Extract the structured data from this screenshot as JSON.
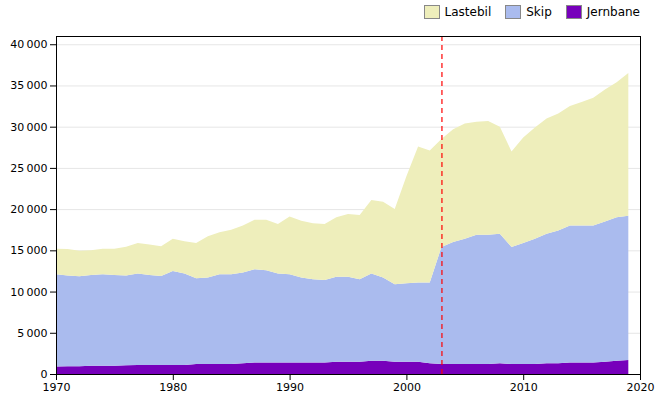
{
  "chart_data": {
    "type": "area",
    "stacked": true,
    "x": [
      1970,
      1971,
      1972,
      1973,
      1974,
      1975,
      1976,
      1977,
      1978,
      1979,
      1980,
      1981,
      1982,
      1983,
      1984,
      1985,
      1986,
      1987,
      1988,
      1989,
      1990,
      1991,
      1992,
      1993,
      1994,
      1995,
      1996,
      1997,
      1998,
      1999,
      2000,
      2001,
      2002,
      2003,
      2004,
      2005,
      2006,
      2007,
      2008,
      2009,
      2010,
      2011,
      2012,
      2013,
      2014,
      2015,
      2016,
      2017,
      2018,
      2019
    ],
    "series": [
      {
        "name": "Jernbane",
        "color": "#7700bb",
        "values": [
          900,
          950,
          950,
          1000,
          1000,
          1000,
          1050,
          1100,
          1100,
          1100,
          1100,
          1100,
          1200,
          1200,
          1200,
          1200,
          1300,
          1400,
          1400,
          1400,
          1400,
          1400,
          1400,
          1400,
          1500,
          1500,
          1500,
          1600,
          1600,
          1500,
          1500,
          1500,
          1300,
          1200,
          1200,
          1200,
          1200,
          1200,
          1300,
          1200,
          1200,
          1200,
          1300,
          1300,
          1400,
          1400,
          1400,
          1500,
          1600,
          1700
        ]
      },
      {
        "name": "Skip",
        "color": "#aabbee",
        "values": [
          11200,
          11000,
          10900,
          11000,
          11100,
          11000,
          10900,
          11100,
          10900,
          10800,
          11400,
          11100,
          10400,
          10500,
          10900,
          10900,
          11000,
          11300,
          11200,
          10800,
          10700,
          10300,
          10100,
          10000,
          10300,
          10300,
          10000,
          10600,
          10100,
          9400,
          9500,
          9600,
          9800,
          14200,
          14800,
          15200,
          15700,
          15700,
          15700,
          14200,
          14700,
          15200,
          15700,
          16100,
          16600,
          16600,
          16600,
          17000,
          17400,
          17500
        ]
      },
      {
        "name": "Lastebil",
        "color": "#eeeebb",
        "values": [
          3100,
          3200,
          3100,
          3000,
          3100,
          3200,
          3500,
          3700,
          3700,
          3600,
          3900,
          3900,
          4300,
          5000,
          5100,
          5400,
          5700,
          6000,
          6100,
          6000,
          7000,
          6900,
          6800,
          6800,
          7200,
          7600,
          7800,
          8900,
          9200,
          9100,
          13000,
          16500,
          16000,
          13100,
          13700,
          14000,
          13700,
          13800,
          13000,
          11600,
          12800,
          13500,
          14000,
          14200,
          14500,
          15000,
          15500,
          16000,
          16400,
          17300
        ]
      }
    ],
    "xlim": [
      1970,
      2020
    ],
    "xticks": [
      1970,
      1980,
      1990,
      2000,
      2010,
      2020
    ],
    "ylim": [
      0,
      41000
    ],
    "yticks": [
      0,
      {
        "value": 5000,
        "label": "5 000"
      },
      {
        "value": 10000,
        "label": "10 000"
      },
      {
        "value": 15000,
        "label": "15 000"
      },
      {
        "value": 20000,
        "label": "20 000"
      },
      {
        "value": 25000,
        "label": "25 000"
      },
      {
        "value": 30000,
        "label": "30 000"
      },
      {
        "value": 35000,
        "label": "35 000"
      },
      {
        "value": 40000,
        "label": "40 000"
      }
    ],
    "grid": "y",
    "legend": "upper right",
    "annotations": [
      {
        "type": "vline",
        "x": 2003,
        "color": "red",
        "line_style": "dashed"
      }
    ]
  }
}
